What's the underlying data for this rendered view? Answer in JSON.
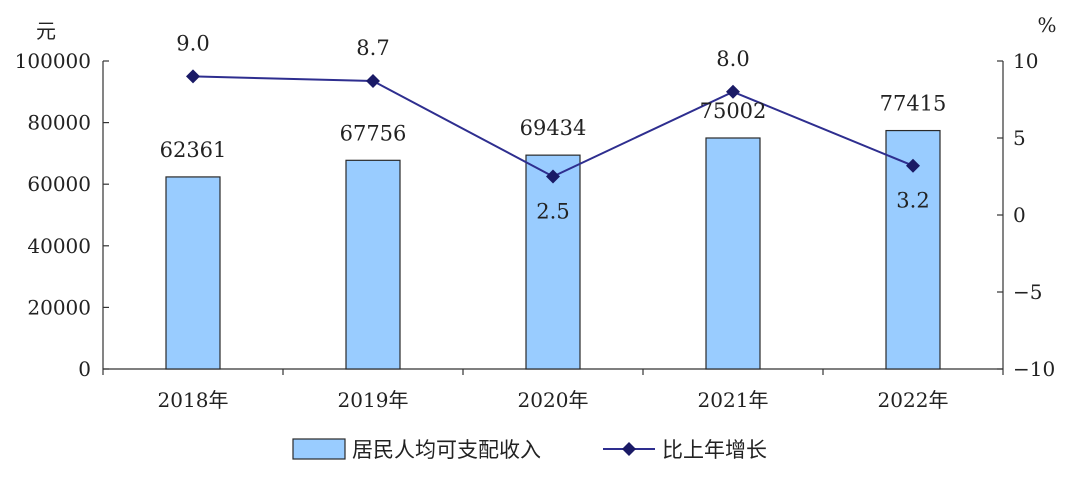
{
  "chart_data": {
    "type": "bar",
    "categories": [
      "2018年",
      "2019年",
      "2020年",
      "2021年",
      "2022年"
    ],
    "series": [
      {
        "name": "居民人均可支配收入",
        "type": "bar",
        "axis": "left",
        "values": [
          62361,
          67756,
          69434,
          75002,
          77415
        ],
        "labels": [
          "62361",
          "67756",
          "69434",
          "75002",
          "77415"
        ]
      },
      {
        "name": "比上年增长",
        "type": "line",
        "axis": "right",
        "values": [
          9.0,
          8.7,
          2.5,
          8.0,
          3.2
        ],
        "labels": [
          "9.0",
          "8.7",
          "2.5",
          "8.0",
          "3.2"
        ]
      }
    ],
    "y_left": {
      "unit": "元",
      "ylim": [
        0,
        100000
      ],
      "ticks": [
        0,
        20000,
        40000,
        60000,
        80000,
        100000
      ],
      "tick_labels": [
        "0",
        "20000",
        "40000",
        "60000",
        "80000",
        "100000"
      ]
    },
    "y_right": {
      "unit": "%",
      "ylim": [
        -10,
        10
      ],
      "ticks": [
        -10,
        -5,
        0,
        5,
        10
      ],
      "tick_labels": [
        "−10",
        "−5",
        "0",
        "5",
        "10"
      ]
    },
    "legend": {
      "position": "bottom-center"
    },
    "grid": false,
    "colors": {
      "bar_fill": "#99ccff",
      "bar_stroke": "#2a2a2a",
      "line": "#2e2e8f",
      "marker": "#1a1a66",
      "axis": "#333333"
    }
  }
}
